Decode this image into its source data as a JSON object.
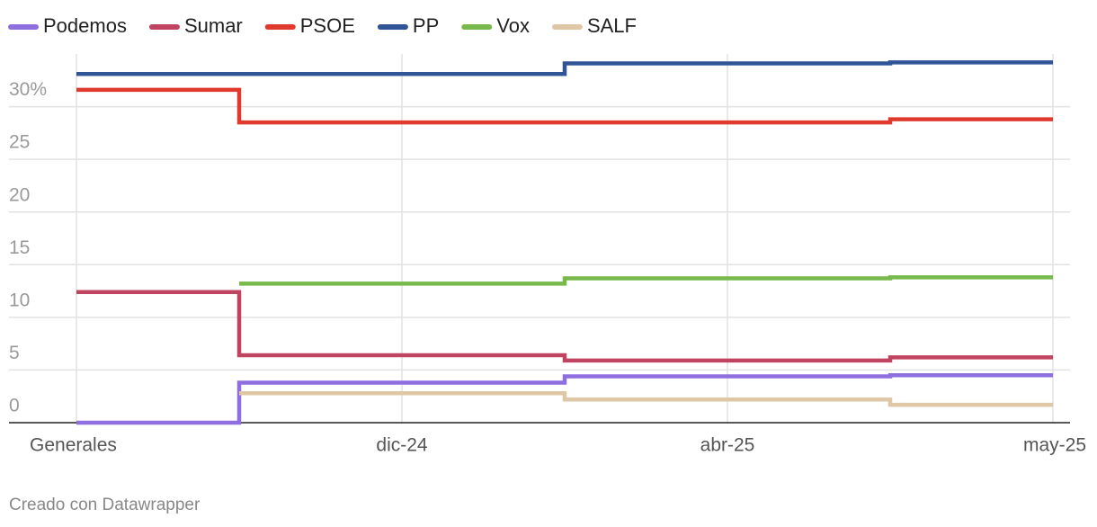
{
  "chart_data": {
    "type": "step-line",
    "categories": [
      "Generales",
      "dic-24",
      "abr-25",
      "may-25"
    ],
    "series": [
      {
        "name": "Podemos",
        "color": "#8f6fe0",
        "values": [
          0,
          3.8,
          4.4,
          4.5
        ]
      },
      {
        "name": "Sumar",
        "color": "#c0435f",
        "values": [
          12.4,
          6.4,
          5.9,
          6.2
        ]
      },
      {
        "name": "PSOE",
        "color": "#e03a2f",
        "values": [
          31.6,
          28.5,
          28.5,
          28.8
        ]
      },
      {
        "name": "PP",
        "color": "#2f5597",
        "values": [
          33.1,
          33.1,
          34.1,
          34.2
        ]
      },
      {
        "name": "Vox",
        "color": "#77b94a",
        "values": [
          null,
          13.2,
          13.7,
          13.8
        ]
      },
      {
        "name": "SALF",
        "color": "#dfc7a6",
        "values": [
          null,
          2.8,
          2.2,
          1.7
        ]
      }
    ],
    "ylim": [
      0,
      35
    ],
    "yticks": [
      0,
      5,
      10,
      15,
      20,
      25,
      {
        "value": 30,
        "label": "30%"
      }
    ],
    "grid": true,
    "legend": "top",
    "source": "Creado con Datawrapper"
  }
}
